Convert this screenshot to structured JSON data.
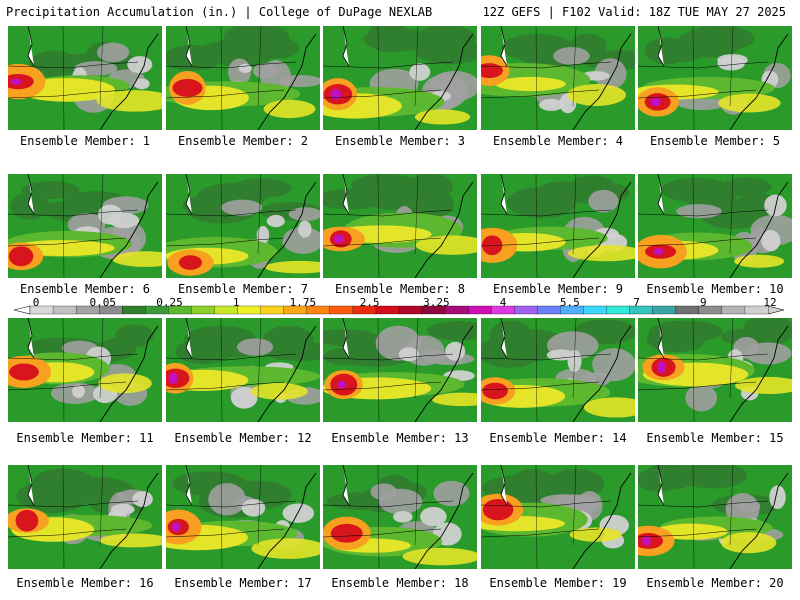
{
  "header": {
    "title": "Precipitation Accumulation (in.) | College of DuPage NEXLAB",
    "run_info": "12Z GEFS | F102 Valid: 18Z TUE MAY 27 2025"
  },
  "colorbar": {
    "labels": [
      "0",
      "0.05",
      "0.25",
      "1",
      "1.75",
      "2.5",
      "3.25",
      "4",
      "5.5",
      "7",
      "9",
      "12"
    ],
    "colors": [
      "#d8d8d8",
      "#c0c0c0",
      "#a4a4a4",
      "#8c8c8c",
      "#2f7f2f",
      "#3c9a3c",
      "#5cb82e",
      "#8ed02a",
      "#c8e82a",
      "#f0f028",
      "#fcd21e",
      "#fca818",
      "#fc8410",
      "#f85c0c",
      "#ec2c10",
      "#d40c1c",
      "#b00828",
      "#90083c",
      "#a80c78",
      "#cc10b4",
      "#e038e0",
      "#a060f0",
      "#6c80fc",
      "#50b0fc",
      "#3cd8fc",
      "#30e8d8",
      "#34c4c0",
      "#3ca4a4",
      "#707070",
      "#8c8c8c",
      "#b4b4b4",
      "#d0d0d0"
    ]
  },
  "members": [
    {
      "label": "Ensemble Member: 1"
    },
    {
      "label": "Ensemble Member: 2"
    },
    {
      "label": "Ensemble Member: 3"
    },
    {
      "label": "Ensemble Member: 4"
    },
    {
      "label": "Ensemble Member: 5"
    },
    {
      "label": "Ensemble Member: 6"
    },
    {
      "label": "Ensemble Member: 7"
    },
    {
      "label": "Ensemble Member: 8"
    },
    {
      "label": "Ensemble Member: 9"
    },
    {
      "label": "Ensemble Member: 10"
    },
    {
      "label": "Ensemble Member: 11"
    },
    {
      "label": "Ensemble Member: 12"
    },
    {
      "label": "Ensemble Member: 13"
    },
    {
      "label": "Ensemble Member: 14"
    },
    {
      "label": "Ensemble Member: 15"
    },
    {
      "label": "Ensemble Member: 16"
    },
    {
      "label": "Ensemble Member: 17"
    },
    {
      "label": "Ensemble Member: 18"
    },
    {
      "label": "Ensemble Member: 19"
    },
    {
      "label": "Ensemble Member: 20"
    }
  ],
  "colors": {
    "land_green": "#2a9a2a",
    "dark_green": "#2f7f2f",
    "light_green": "#5cb82e",
    "yellow": "#e4e428",
    "orange": "#f8a020",
    "red": "#d8141c",
    "magenta": "#c010c0",
    "gray_light": "#d0d0d0",
    "gray": "#a0a0a0"
  }
}
